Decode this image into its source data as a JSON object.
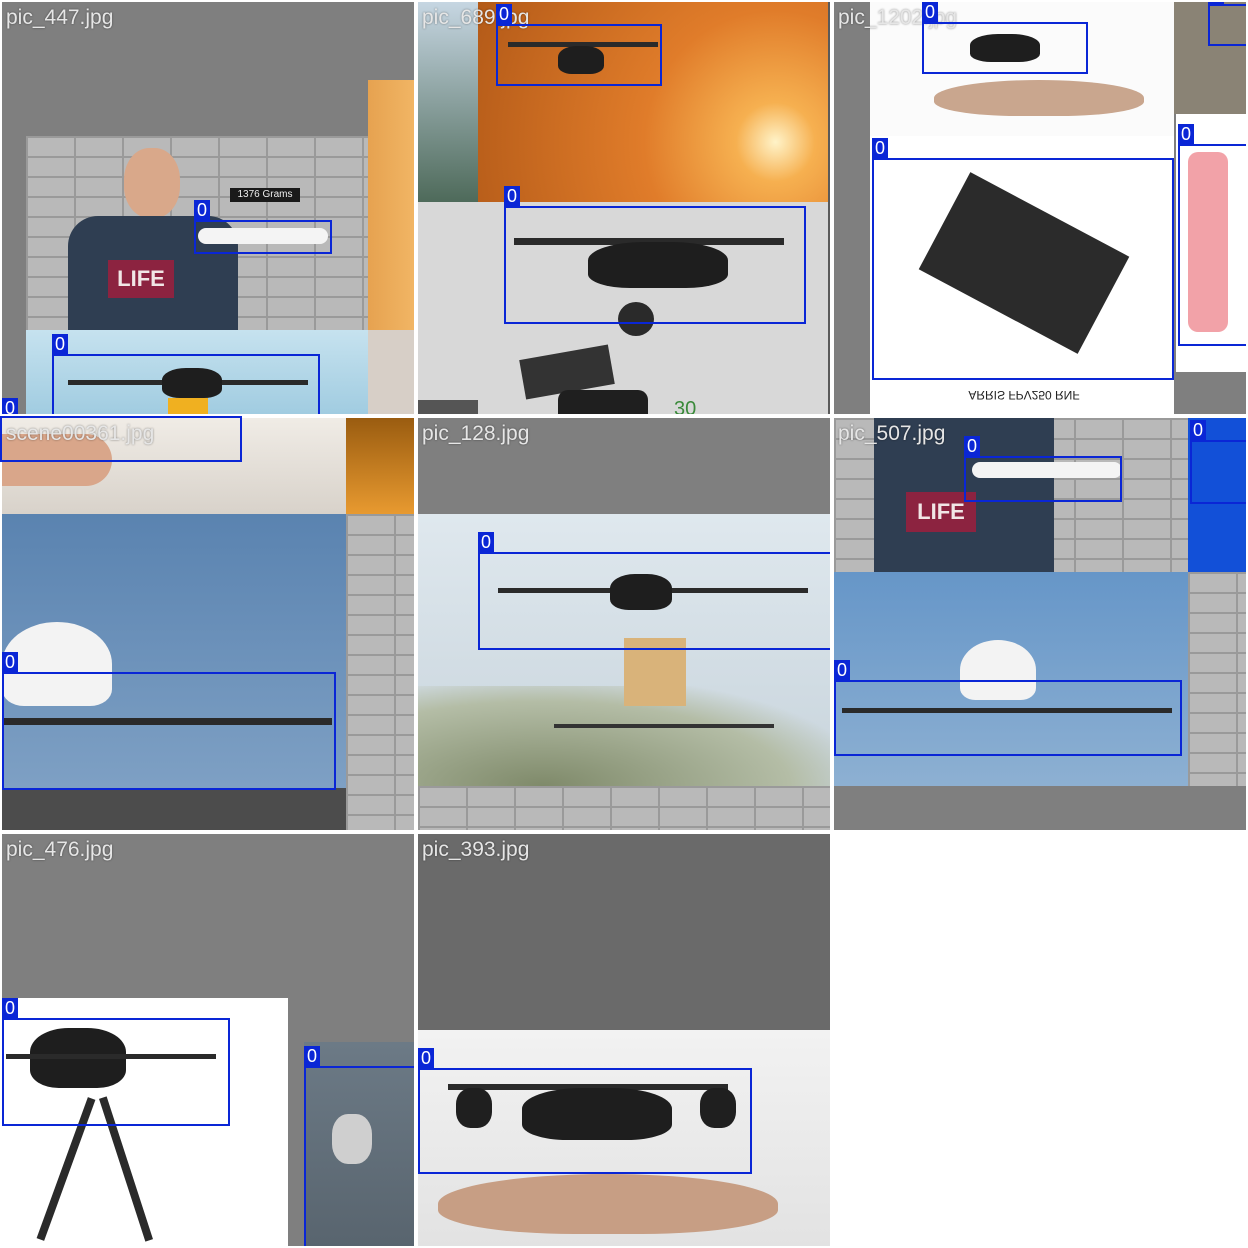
{
  "tiles": [
    {
      "filename": "pic_447.jpg",
      "boxes": [
        "0",
        "0",
        "0"
      ]
    },
    {
      "filename": "pic_689.jpg",
      "boxes": [
        "0",
        "0"
      ]
    },
    {
      "filename": "pic_1202.jpg",
      "boxes": [
        "0",
        "0",
        "0",
        "0"
      ]
    },
    {
      "filename": "scene00361.jpg",
      "boxes": [
        "0"
      ]
    },
    {
      "filename": "pic_128.jpg",
      "boxes": [
        "0"
      ]
    },
    {
      "filename": "pic_507.jpg",
      "boxes": [
        "0",
        "0",
        "0"
      ]
    },
    {
      "filename": "pic_476.jpg",
      "boxes": [
        "0",
        "0"
      ]
    },
    {
      "filename": "pic_393.jpg",
      "boxes": [
        "0"
      ]
    }
  ],
  "overlay_text": {
    "grams_sign": "1376 Grams",
    "shirt_text": "LIFE",
    "arris_text": "ARRIS FPV250 RNF",
    "phone_number": "30"
  },
  "colors": {
    "box_border": "#0a26d6",
    "label_bg": "#0a26d6",
    "label_text": "#ffffff",
    "filename_text": "#e6e6e6",
    "letterbox_gray": "#7f7f7f"
  }
}
